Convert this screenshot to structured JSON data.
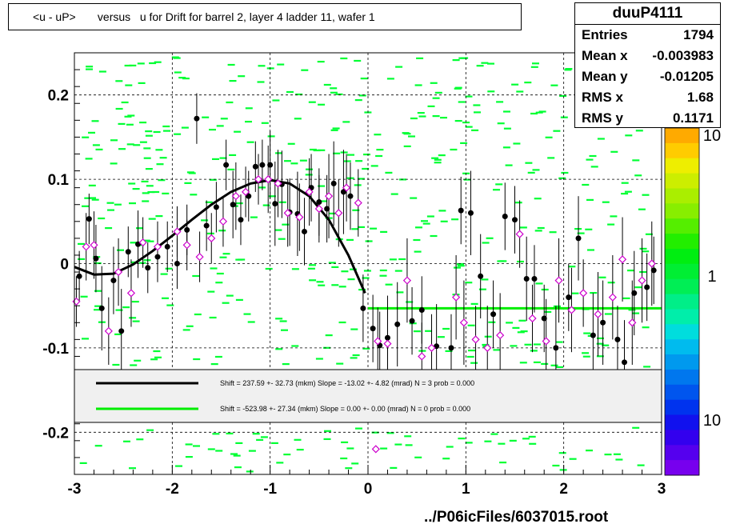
{
  "title": "<u - uP>       versus   u for Drift for barrel 2, layer 4 ladder 11, wafer 1",
  "stats": {
    "name": "duuP4111",
    "rows": [
      {
        "label": "Entries",
        "value": "1794"
      },
      {
        "label": "Mean x",
        "value": "-0.003983"
      },
      {
        "label": "Mean y",
        "value": "-0.01205"
      },
      {
        "label": "RMS x",
        "value": "1.68"
      },
      {
        "label": "RMS y",
        "value": "0.1171"
      }
    ]
  },
  "footer": "../P06icFiles/6037015.root",
  "legend": {
    "line1": "Shift =   237.59 +- 32.73 (mkm) Slope =   -13.02 +- 4.82 (mrad)  N = 3 prob = 0.000",
    "line2": "Shift =  -523.98 +- 27.34 (mkm) Slope =    0.00 +- 0.00 (mrad)  N = 0 prob = 0.000"
  },
  "colors": {
    "fit_black": "#000000",
    "fit_green": "#00ee00",
    "bins": "#00ff33",
    "open_marker": "#cc00cc"
  },
  "chart_data": {
    "type": "scatter",
    "xlim": [
      -3,
      3
    ],
    "ylim": [
      -0.25,
      0.25
    ],
    "x_ticks": [
      -3,
      -2,
      -1,
      0,
      1,
      2,
      3
    ],
    "y_ticks": [
      -0.2,
      -0.1,
      0,
      0.1,
      0.2
    ],
    "x_tick_labels": [
      "-3",
      "-2",
      "-1",
      "0",
      "1",
      "2",
      "3"
    ],
    "y_tick_labels": [
      "-0.2",
      "-0.1",
      "0",
      "0.1",
      "0.2"
    ],
    "grid": true,
    "palette_labels": [
      "10",
      "1",
      "10"
    ],
    "series": [
      {
        "marker": "filled",
        "x": [
          -2.95,
          -2.85,
          -2.78,
          -2.72,
          -2.6,
          -2.52,
          -2.45,
          -2.35,
          -2.25,
          -2.15,
          -2.05,
          -1.95,
          -1.85,
          -1.75,
          -1.65,
          -1.55,
          -1.45,
          -1.38,
          -1.3,
          -1.22,
          -1.15,
          -1.08,
          -1.0,
          -0.95,
          -0.88,
          -0.8,
          -0.72,
          -0.65,
          -0.58,
          -0.5,
          -0.42,
          -0.35,
          -0.25,
          -0.18,
          -0.05,
          0.05,
          0.12,
          0.2,
          0.3,
          0.45,
          0.55,
          0.7,
          0.85,
          0.95,
          1.05,
          1.15,
          1.28,
          1.4,
          1.5,
          1.62,
          1.7,
          1.8,
          1.92,
          2.05,
          2.15,
          2.3,
          2.4,
          2.55,
          2.62,
          2.72,
          2.85,
          2.92
        ],
        "y": [
          -0.015,
          0.053,
          0.006,
          -0.053,
          -0.02,
          -0.08,
          0.014,
          0.023,
          -0.005,
          0.008,
          0.02,
          0.0,
          0.04,
          0.172,
          0.045,
          0.067,
          0.117,
          0.07,
          0.052,
          0.08,
          0.115,
          0.117,
          0.117,
          0.071,
          0.094,
          0.061,
          0.059,
          0.038,
          0.09,
          0.073,
          0.065,
          0.095,
          0.085,
          0.08,
          -0.053,
          -0.077,
          -0.097,
          -0.088,
          -0.072,
          -0.068,
          -0.055,
          -0.098,
          -0.1,
          0.063,
          0.06,
          -0.015,
          -0.06,
          0.056,
          0.052,
          -0.018,
          -0.018,
          -0.065,
          -0.1,
          -0.04,
          0.03,
          -0.085,
          -0.07,
          -0.09,
          -0.117,
          -0.035,
          -0.028,
          -0.008
        ],
        "err": [
          0.03,
          0.03,
          0.04,
          0.05,
          0.04,
          0.05,
          0.03,
          0.04,
          0.03,
          0.03,
          0.03,
          0.03,
          0.03,
          0.03,
          0.03,
          0.03,
          0.03,
          0.04,
          0.03,
          0.03,
          0.03,
          0.03,
          0.04,
          0.05,
          0.04,
          0.04,
          0.05,
          0.04,
          0.04,
          0.04,
          0.04,
          0.05,
          0.05,
          0.04,
          0.04,
          0.04,
          0.04,
          0.05,
          0.05,
          0.04,
          0.04,
          0.05,
          0.04,
          0.04,
          0.05,
          0.05,
          0.04,
          0.04,
          0.04,
          0.05,
          0.04,
          0.04,
          0.05,
          0.04,
          0.05,
          0.05,
          0.05,
          0.04,
          0.05,
          0.05,
          0.04,
          0.04
        ]
      },
      {
        "marker": "open",
        "x": [
          -2.98,
          -2.88,
          -2.8,
          -2.65,
          -2.55,
          -2.42,
          -2.3,
          -2.15,
          -1.95,
          -1.85,
          -1.72,
          -1.6,
          -1.48,
          -1.35,
          -1.25,
          -1.12,
          -1.02,
          -0.92,
          -0.82,
          -0.7,
          -0.6,
          -0.5,
          -0.4,
          -0.3,
          -0.22,
          -0.1,
          0.1,
          0.2,
          0.4,
          0.55,
          0.65,
          0.9,
          0.98,
          1.1,
          1.22,
          1.35,
          1.55,
          1.68,
          1.82,
          1.95,
          2.08,
          2.2,
          2.35,
          2.5,
          2.6,
          2.7,
          2.8,
          2.9,
          0.08
        ],
        "y": [
          -0.045,
          0.02,
          0.022,
          -0.08,
          -0.01,
          -0.035,
          0.025,
          0.02,
          0.038,
          0.022,
          0.008,
          0.03,
          0.05,
          0.08,
          0.085,
          0.1,
          0.1,
          0.095,
          0.06,
          0.055,
          0.085,
          0.065,
          0.08,
          0.06,
          0.09,
          0.072,
          -0.092,
          -0.095,
          -0.02,
          -0.11,
          -0.1,
          -0.04,
          -0.07,
          -0.09,
          -0.1,
          -0.085,
          0.035,
          -0.065,
          -0.092,
          -0.02,
          -0.055,
          -0.035,
          -0.06,
          -0.04,
          0.005,
          -0.07,
          -0.02,
          0.0,
          -0.22
        ],
        "err": [
          0.03,
          0.04,
          0.04,
          0.04,
          0.04,
          0.04,
          0.03,
          0.03,
          0.03,
          0.03,
          0.03,
          0.03,
          0.03,
          0.04,
          0.03,
          0.03,
          0.04,
          0.04,
          0.04,
          0.04,
          0.04,
          0.04,
          0.05,
          0.04,
          0.04,
          0.04,
          0.04,
          0.04,
          0.05,
          0.04,
          0.04,
          0.05,
          0.05,
          0.04,
          0.05,
          0.05,
          0.04,
          0.04,
          0.05,
          0.05,
          0.05,
          0.04,
          0.05,
          0.05,
          0.05,
          0.05,
          0.05,
          0.05,
          0.0
        ]
      }
    ],
    "fits": [
      {
        "name": "fit1",
        "x_range": [
          -3,
          -0.03
        ],
        "kind": "black-curve",
        "x": [
          -3.0,
          -2.8,
          -2.6,
          -2.4,
          -2.2,
          -2.0,
          -1.8,
          -1.6,
          -1.4,
          -1.2,
          -1.0,
          -0.8,
          -0.6,
          -0.4,
          -0.2,
          -0.03
        ],
        "y": [
          -0.004,
          -0.013,
          -0.012,
          -0.001,
          0.015,
          0.033,
          0.052,
          0.07,
          0.085,
          0.095,
          0.099,
          0.095,
          0.08,
          0.052,
          0.01,
          -0.035
        ]
      },
      {
        "name": "fit2",
        "kind": "green-line",
        "x_range": [
          0.0,
          3.0
        ],
        "y": -0.053
      }
    ]
  }
}
